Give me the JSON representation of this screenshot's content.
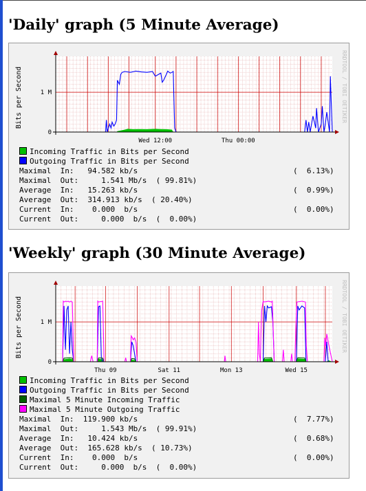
{
  "graphs": [
    {
      "title": "'Daily' graph (5 Minute Average)",
      "side_text": "RRDTOOL / TOBI OETIKER",
      "chart_data": {
        "type": "area",
        "ylabel": "Bits per Second",
        "ylim": [
          0,
          1900000
        ],
        "yticks": [
          {
            "value": 0,
            "label": "0"
          },
          {
            "value": 1000000,
            "label": "1 M"
          }
        ],
        "xlim": [
          0,
          100
        ],
        "xtick_labels": [
          {
            "x": 36,
            "label": "Wed 12:00"
          },
          {
            "x": 66,
            "label": "Thu 00:00"
          }
        ],
        "vgrid": [
          4,
          11.5,
          19,
          26.5,
          36,
          43.5,
          51,
          58.5,
          66,
          73.5,
          81,
          88.5,
          96
        ],
        "series": [
          {
            "name": "Incoming Traffic in Bits per Second",
            "color": "#00c000",
            "kind": "area",
            "x": [
              0,
              22,
              22.3,
              25,
              26,
              28,
              30,
              33,
              36,
              38,
              40,
              42,
              42.5,
              100
            ],
            "y": [
              0,
              0,
              20000,
              60000,
              80000,
              70000,
              75000,
              70000,
              80000,
              75000,
              70000,
              60000,
              0,
              0
            ]
          },
          {
            "name": "Outgoing Traffic in Bits per Second",
            "color": "#0000ff",
            "kind": "line",
            "x": [
              0,
              18,
              18.3,
              18.6,
              19.5,
              20,
              20.4,
              21,
              21.5,
              22,
              22.3,
              23,
              23.5,
              24,
              25,
              27,
              29,
              31,
              33,
              35,
              36,
              38,
              38.5,
              39,
              40,
              40.5,
              41,
              41.5,
              42,
              42.5,
              43,
              43.5,
              90,
              90.5,
              91,
              91.5,
              92,
              93,
              94,
              94.3,
              95,
              96,
              96.4,
              97,
              97.5,
              98,
              99,
              99.3,
              100
            ],
            "y": [
              0,
              0,
              300000,
              0,
              200000,
              100000,
              250000,
              150000,
              200000,
              300000,
              1300000,
              1200000,
              1450000,
              1500000,
              1520000,
              1500000,
              1530000,
              1510000,
              1500000,
              1520000,
              1400000,
              1480000,
              1250000,
              1300000,
              1450000,
              1530000,
              1500000,
              1480000,
              1500000,
              1520000,
              100000,
              0,
              0,
              300000,
              0,
              250000,
              0,
              400000,
              100000,
              600000,
              0,
              200000,
              650000,
              0,
              200000,
              500000,
              0,
              1400000,
              0
            ]
          }
        ]
      },
      "legend": [
        {
          "label": "Incoming Traffic in Bits per Second",
          "color": "#00c000"
        },
        {
          "label": "Outgoing Traffic in Bits per Second",
          "color": "#0000ff"
        }
      ],
      "stats": [
        {
          "left": "Maximal  In:   94.582 kb/s",
          "right": "(  6.13%)"
        },
        {
          "left": "Maximal  Out:     1.541 Mb/s  ( 99.81%)",
          "right": ""
        },
        {
          "left": "Average  In:   15.263 kb/s",
          "right": "(  0.99%)"
        },
        {
          "left": "Average  Out:  314.913 kb/s  ( 20.40%)",
          "right": ""
        },
        {
          "left": "Current  In:    0.000  b/s",
          "right": "(  0.00%)"
        },
        {
          "left": "Current  Out:     0.000  b/s  (  0.00%)",
          "right": ""
        }
      ]
    },
    {
      "title": "'Weekly' graph (30 Minute Average)",
      "side_text": "RRDTOOL / TOBI OETIKER",
      "chart_data": {
        "type": "area",
        "ylabel": "Bits per Second",
        "ylim": [
          0,
          1900000
        ],
        "yticks": [
          {
            "value": 0,
            "label": "0"
          },
          {
            "value": 1000000,
            "label": "1 M"
          }
        ],
        "xlim": [
          0,
          100
        ],
        "xtick_labels": [
          {
            "x": 18,
            "label": "Thu 09"
          },
          {
            "x": 41,
            "label": "Sat 11"
          },
          {
            "x": 63.5,
            "label": "Mon 13"
          },
          {
            "x": 87,
            "label": "Wed 15"
          }
        ],
        "vgrid": [
          7,
          18,
          29.5,
          41,
          52,
          63.5,
          75,
          87,
          97.5
        ],
        "series": [
          {
            "name": "Incoming Traffic in Bits per Second",
            "color": "#00c000",
            "kind": "area",
            "x": [
              0,
              2.5,
              3,
              5,
              6,
              6.5,
              15,
              15.5,
              17,
              17.5,
              27,
              27.5,
              28.5,
              29,
              75,
              75.5,
              78,
              78.5,
              87,
              87.5,
              90,
              90.5,
              98,
              98.5,
              100
            ],
            "y": [
              0,
              0,
              60000,
              80000,
              60000,
              0,
              0,
              70000,
              60000,
              0,
              0,
              50000,
              40000,
              0,
              0,
              70000,
              80000,
              0,
              0,
              80000,
              70000,
              0,
              0,
              40000,
              0
            ]
          },
          {
            "name": "Outgoing Traffic in Bits per Second",
            "color": "#0000ff",
            "kind": "line",
            "x": [
              0,
              2.5,
              3,
              3.5,
              4,
              4.5,
              5,
              5.5,
              6,
              6.5,
              15,
              15.5,
              16,
              16.5,
              17,
              17.5,
              27,
              27.5,
              28,
              28.5,
              29,
              75,
              75.5,
              76,
              76.5,
              77,
              78,
              78.5,
              79,
              87,
              87.5,
              88,
              89,
              90,
              90.5,
              97.5,
              98,
              98.5,
              100
            ],
            "y": [
              0,
              0,
              1400000,
              300000,
              1300000,
              1400000,
              200000,
              1000000,
              300000,
              0,
              0,
              1380000,
              1400000,
              100000,
              0,
              0,
              0,
              500000,
              400000,
              200000,
              0,
              0,
              1400000,
              1000000,
              1400000,
              1350000,
              1380000,
              1000000,
              0,
              0,
              1400000,
              1300000,
              1400000,
              1350000,
              0,
              0,
              500000,
              0,
              0
            ]
          },
          {
            "name": "Maximal 5 Minute Incoming Traffic",
            "color": "#006000",
            "kind": "line",
            "x": [
              0,
              2.5,
              3,
              5,
              6,
              6.5,
              15,
              15.5,
              17,
              17.5,
              27,
              27.5,
              28.5,
              29,
              75,
              75.5,
              78,
              78.5,
              87,
              87.5,
              90,
              90.5,
              100
            ],
            "y": [
              0,
              0,
              90000,
              100000,
              90000,
              0,
              0,
              95000,
              90000,
              0,
              0,
              80000,
              70000,
              0,
              0,
              95000,
              100000,
              0,
              0,
              100000,
              95000,
              0,
              0
            ]
          },
          {
            "name": "Maximal 5 Minute Outgoing Traffic",
            "color": "#ff00ff",
            "kind": "line",
            "x": [
              0,
              2.5,
              2.7,
              3,
              3.5,
              4,
              4.5,
              5,
              5.5,
              6,
              6.5,
              12.5,
              13,
              13.5,
              15,
              15.2,
              15.5,
              17,
              17.5,
              18,
              25,
              25.3,
              25.6,
              27,
              27.3,
              27.7,
              28,
              28.5,
              29,
              29.5,
              61,
              61.2,
              61.5,
              73,
              73.3,
              73.6,
              74,
              74.2,
              74.5,
              75,
              75.3,
              77,
              78,
              78.3,
              79,
              82,
              82.3,
              82.6,
              85,
              85.3,
              85.6,
              86.5,
              86.8,
              87.2,
              89,
              90.3,
              90.6,
              91,
              97,
              97.3,
              97.6,
              98,
              98.5,
              100
            ],
            "y": [
              0,
              0,
              1520000,
              1500000,
              1520000,
              1510000,
              1520000,
              1500000,
              1520000,
              1500000,
              0,
              0,
              150000,
              0,
              0,
              1520000,
              1500000,
              1520000,
              0,
              0,
              0,
              100000,
              0,
              0,
              650000,
              600000,
              550000,
              600000,
              500000,
              0,
              0,
              150000,
              0,
              0,
              1000000,
              200000,
              0,
              700000,
              1300000,
              1520000,
              1500000,
              1520000,
              1500000,
              1520000,
              0,
              0,
              300000,
              0,
              0,
              200000,
              0,
              0,
              800000,
              1500000,
              1520000,
              1500000,
              400000,
              0,
              0,
              600000,
              400000,
              700000,
              500000,
              0
            ]
          }
        ]
      },
      "legend": [
        {
          "label": "Incoming Traffic in Bits per Second",
          "color": "#00c000"
        },
        {
          "label": "Outgoing Traffic in Bits per Second",
          "color": "#0000ff"
        },
        {
          "label": "Maximal 5 Minute Incoming Traffic",
          "color": "#006000"
        },
        {
          "label": "Maximal 5 Minute Outgoing Traffic",
          "color": "#ff00ff"
        }
      ],
      "stats": [
        {
          "left": "Maximal  In:  119.900 kb/s",
          "right": "(  7.77%)"
        },
        {
          "left": "Maximal  Out:     1.543 Mb/s  ( 99.91%)",
          "right": ""
        },
        {
          "left": "Average  In:   10.424 kb/s",
          "right": "(  0.68%)"
        },
        {
          "left": "Average  Out:  165.628 kb/s  ( 10.73%)",
          "right": ""
        },
        {
          "left": "Current  In:    0.000  b/s",
          "right": "(  0.00%)"
        },
        {
          "left": "Current  Out:     0.000  b/s  (  0.00%)",
          "right": ""
        }
      ]
    }
  ]
}
